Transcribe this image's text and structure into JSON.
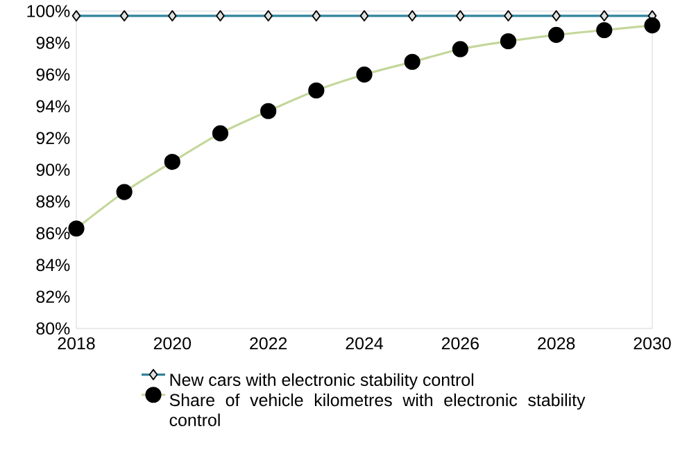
{
  "chart_data": {
    "type": "line",
    "x": [
      2018,
      2019,
      2020,
      2021,
      2022,
      2023,
      2024,
      2025,
      2026,
      2027,
      2028,
      2029,
      2030
    ],
    "series": [
      {
        "name": "New cars with electronic stability control",
        "color": "#31849b",
        "marker": "diamond",
        "values": [
          99.7,
          99.7,
          99.7,
          99.7,
          99.7,
          99.7,
          99.7,
          99.7,
          99.7,
          99.7,
          99.7,
          99.7,
          99.7
        ]
      },
      {
        "name": "Share of vehicle kilometres with electronic stability control",
        "color": "#c4d79b",
        "marker": "circle",
        "values": [
          86.3,
          88.6,
          90.5,
          92.3,
          93.7,
          95.0,
          96.0,
          96.8,
          97.6,
          98.1,
          98.5,
          98.8,
          99.1
        ]
      }
    ],
    "xlim": [
      2018,
      2030
    ],
    "xticks": [
      2018,
      2020,
      2022,
      2024,
      2026,
      2028,
      2030
    ],
    "ylim": [
      80,
      100
    ],
    "yticks": [
      {
        "value": 80,
        "label": "80%"
      },
      {
        "value": 82,
        "label": "82%"
      },
      {
        "value": 84,
        "label": "84%"
      },
      {
        "value": 86,
        "label": "86%"
      },
      {
        "value": 88,
        "label": "88%"
      },
      {
        "value": 90,
        "label": "90%"
      },
      {
        "value": 92,
        "label": "92%"
      },
      {
        "value": 94,
        "label": "94%"
      },
      {
        "value": 96,
        "label": "96%"
      },
      {
        "value": 98,
        "label": "98%"
      },
      {
        "value": 100,
        "label": "100%"
      }
    ],
    "legend": "bottom"
  }
}
